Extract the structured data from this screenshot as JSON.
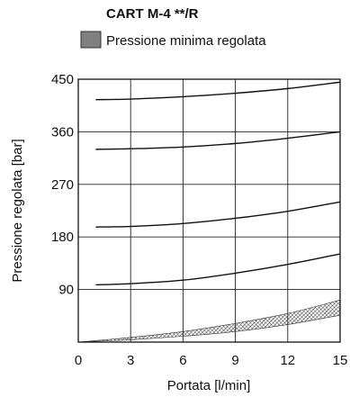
{
  "chart_data": {
    "type": "line",
    "title": "CART M-4 **/R",
    "legend": [
      {
        "label": "Pressione minima regolata",
        "color": "#808080",
        "pattern": "hatched"
      }
    ],
    "legend_position": "top",
    "xlabel": "Portata [l/min]",
    "ylabel": "Pressione regolata [bar]",
    "xlim": [
      0,
      15
    ],
    "ylim": [
      0,
      450
    ],
    "x_ticks": [
      0,
      3,
      6,
      9,
      12,
      15
    ],
    "y_ticks": [
      90,
      180,
      270,
      360,
      450
    ],
    "grid": true,
    "series": [
      {
        "x": [
          1,
          3,
          6,
          9,
          12,
          15
        ],
        "values": [
          415,
          416,
          420,
          426,
          434,
          445
        ]
      },
      {
        "x": [
          1,
          3,
          6,
          9,
          12,
          15
        ],
        "values": [
          330,
          331,
          334,
          340,
          349,
          360
        ]
      },
      {
        "x": [
          1,
          3,
          6,
          9,
          12,
          15
        ],
        "values": [
          197,
          198,
          203,
          212,
          224,
          240
        ]
      },
      {
        "x": [
          1,
          3,
          6,
          9,
          12,
          15
        ],
        "values": [
          98,
          100,
          106,
          118,
          133,
          151
        ]
      }
    ],
    "band": {
      "x": [
        0,
        3,
        6,
        9,
        12,
        15
      ],
      "lower": [
        0,
        4,
        10,
        18,
        30,
        46
      ],
      "upper": [
        0,
        8,
        18,
        32,
        49,
        72
      ]
    }
  }
}
